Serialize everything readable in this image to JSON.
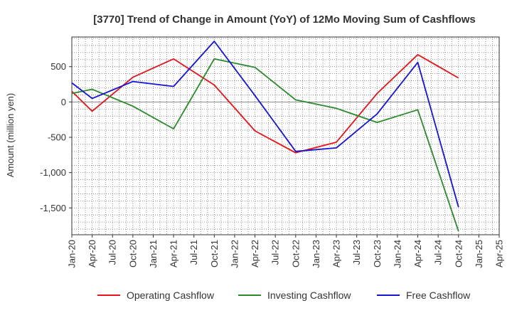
{
  "chart_data": {
    "type": "line",
    "title": "[3770]  Trend of Change in Amount (YoY) of 12Mo Moving Sum of Cashflows",
    "xlabel": "",
    "ylabel": "Amount (million yen)",
    "ylim": [
      -1880,
      920
    ],
    "yticks": [
      500,
      0,
      -500,
      -1000,
      -1500
    ],
    "ytick_labels": [
      "500",
      "0",
      "-500",
      "-1,000",
      "-1,500"
    ],
    "categories": [
      "Jan-20",
      "Apr-20",
      "Jul-20",
      "Oct-20",
      "Jan-21",
      "Apr-21",
      "Jul-21",
      "Oct-21",
      "Jan-22",
      "Apr-22",
      "Jul-22",
      "Oct-22",
      "Jan-23",
      "Apr-23",
      "Jul-23",
      "Oct-23",
      "Jan-24",
      "Apr-24",
      "Jul-24",
      "Oct-24",
      "Jan-25",
      "Apr-25"
    ],
    "x_index_range": [
      0,
      21
    ],
    "grid": true,
    "legend_position": "bottom",
    "series": [
      {
        "name": "Operating Cashflow",
        "color": "#e8141a",
        "points": [
          [
            0,
            150
          ],
          [
            1,
            -130
          ],
          [
            3,
            350
          ],
          [
            5,
            610
          ],
          [
            7,
            240
          ],
          [
            9,
            -410
          ],
          [
            11,
            -720
          ],
          [
            13,
            -570
          ],
          [
            15,
            120
          ],
          [
            17,
            670
          ],
          [
            19,
            340
          ]
        ]
      },
      {
        "name": "Investing Cashflow",
        "color": "#2a8a2a",
        "points": [
          [
            0,
            120
          ],
          [
            1,
            180
          ],
          [
            3,
            -60
          ],
          [
            5,
            -380
          ],
          [
            7,
            610
          ],
          [
            9,
            490
          ],
          [
            11,
            30
          ],
          [
            13,
            -90
          ],
          [
            15,
            -290
          ],
          [
            17,
            -110
          ],
          [
            19,
            -1830
          ]
        ]
      },
      {
        "name": "Free Cashflow",
        "color": "#1414d2",
        "points": [
          [
            0,
            270
          ],
          [
            1,
            50
          ],
          [
            3,
            290
          ],
          [
            5,
            220
          ],
          [
            7,
            860
          ],
          [
            9,
            90
          ],
          [
            11,
            -700
          ],
          [
            13,
            -650
          ],
          [
            15,
            -170
          ],
          [
            17,
            560
          ],
          [
            19,
            -1490
          ]
        ]
      }
    ]
  }
}
